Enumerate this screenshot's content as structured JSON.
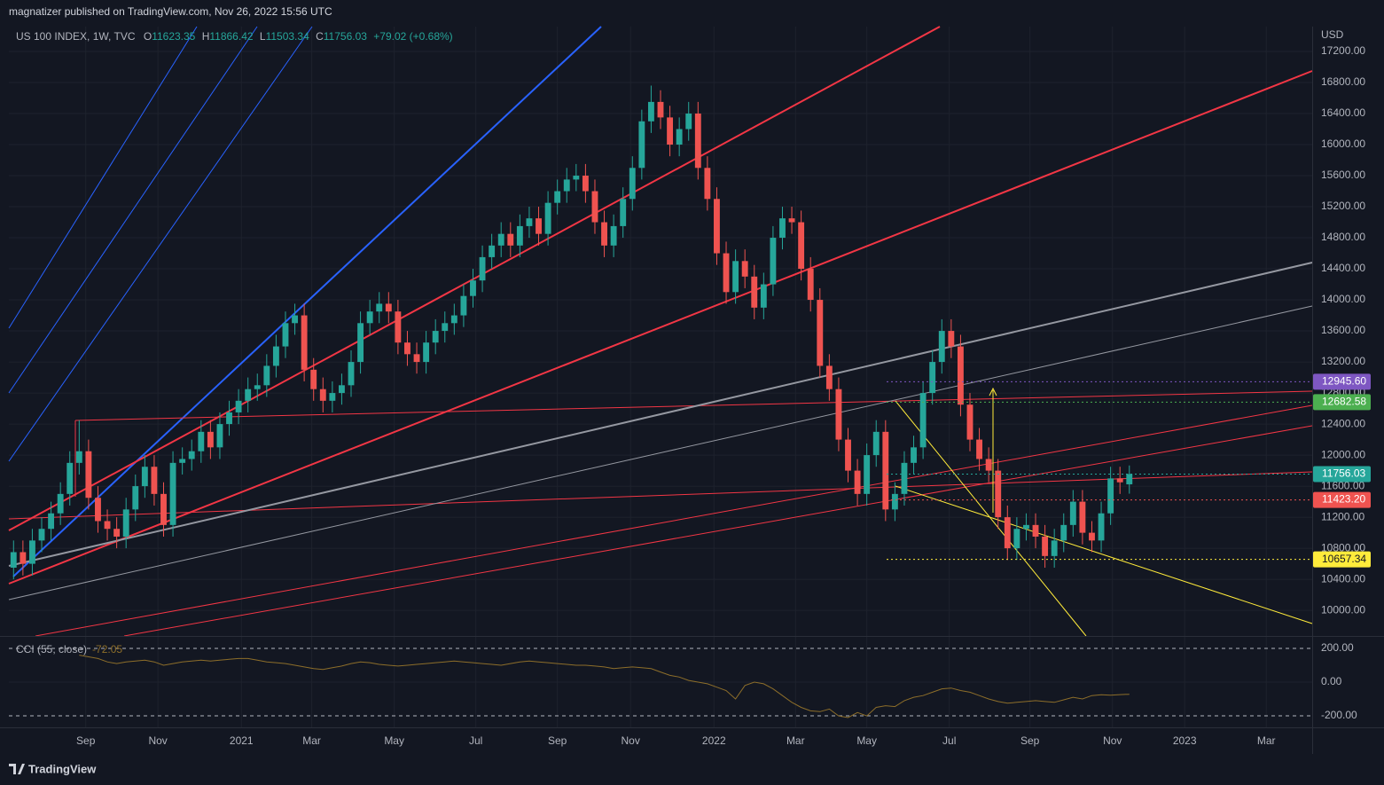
{
  "header": {
    "publisher": "magnatizer published on TradingView.com, Nov 26, 2022 15:56 UTC",
    "footer": "TradingView"
  },
  "chart_data": {
    "type": "candlestick",
    "title": "US 100 INDEX, 1W, TVC",
    "currency": "USD",
    "change": "+79.02 (+0.68%)",
    "ohlc_letters": [
      "O",
      "H",
      "L",
      "C"
    ],
    "up_color": "#26a69a",
    "down_color": "#ef5350",
    "grid": true,
    "open": [
      10550,
      10750,
      10600,
      10900,
      11050,
      11250,
      11500,
      11900,
      12050,
      11450,
      11150,
      11050,
      10950,
      11300,
      11600,
      11850,
      11500,
      11100,
      11900,
      11950,
      12050,
      12300,
      12100,
      12400,
      12550,
      12700,
      12850,
      12900,
      13150,
      13400,
      13700,
      13800,
      13100,
      12850,
      12700,
      12800,
      12900,
      13200,
      13700,
      13850,
      13950,
      13850,
      13450,
      13300,
      13200,
      13450,
      13600,
      13700,
      13800,
      14050,
      14250,
      14550,
      14700,
      14850,
      14700,
      14950,
      15050,
      14850,
      15250,
      15400,
      15550,
      15600,
      15400,
      15000,
      14700,
      14950,
      15300,
      15700,
      16300,
      16550,
      16350,
      16000,
      16200,
      16400,
      15700,
      15300,
      14600,
      14100,
      14500,
      14300,
      13900,
      14200,
      14800,
      15050,
      15000,
      14400,
      14000,
      13150,
      12850,
      12200,
      11800,
      11500,
      12000,
      12300,
      11300,
      11500,
      11900,
      12100,
      12800,
      13200,
      13600,
      13400,
      12650,
      12200,
      11950,
      11800,
      11200,
      10800,
      11050,
      11100,
      10950,
      10700,
      10900,
      11100,
      11400,
      11000,
      10900,
      11250,
      11700,
      11623.35
    ],
    "high": [
      10900,
      10900,
      11050,
      11200,
      11400,
      11650,
      12050,
      12450,
      12200,
      11600,
      11300,
      11200,
      11450,
      11750,
      12000,
      12000,
      11650,
      12050,
      12100,
      12200,
      12450,
      12450,
      12550,
      12700,
      12850,
      13000,
      13050,
      13300,
      13550,
      13850,
      13950,
      13950,
      13250,
      13000,
      12950,
      13050,
      13350,
      13850,
      14000,
      14100,
      14100,
      14000,
      13600,
      13450,
      13600,
      13750,
      13850,
      13950,
      14200,
      14400,
      14700,
      14850,
      15000,
      15000,
      15100,
      15200,
      15200,
      15400,
      15550,
      15700,
      15750,
      15750,
      15550,
      15150,
      15100,
      15450,
      15850,
      16450,
      16760,
      16700,
      16500,
      16350,
      16550,
      16550,
      15850,
      15450,
      14750,
      14650,
      14650,
      14450,
      14350,
      14950,
      15200,
      15200,
      15150,
      14550,
      14150,
      13300,
      13000,
      12350,
      11950,
      12150,
      12450,
      12450,
      11650,
      12050,
      12250,
      12950,
      13350,
      13750,
      13750,
      13550,
      12800,
      12350,
      12100,
      11950,
      11350,
      11200,
      11250,
      11250,
      11100,
      11050,
      11250,
      11550,
      11550,
      11150,
      11400,
      11850,
      11850,
      11866.42
    ],
    "low": [
      10400,
      10450,
      10450,
      10750,
      10900,
      11100,
      11350,
      11750,
      11300,
      11000,
      10900,
      10800,
      10800,
      11150,
      11450,
      11350,
      10950,
      10950,
      11750,
      11800,
      11900,
      11950,
      11950,
      12250,
      12400,
      12550,
      12700,
      12750,
      13000,
      13250,
      13550,
      12950,
      12700,
      12550,
      12550,
      12650,
      12750,
      13050,
      13550,
      13700,
      13700,
      13300,
      13150,
      13050,
      13050,
      13300,
      13450,
      13550,
      13650,
      13900,
      14100,
      14400,
      14550,
      14550,
      14550,
      14800,
      14700,
      14700,
      15100,
      15250,
      15400,
      15250,
      14850,
      14550,
      14550,
      14800,
      15150,
      15550,
      16150,
      16200,
      15850,
      15850,
      16050,
      15550,
      15150,
      14450,
      13950,
      13950,
      14150,
      13750,
      13750,
      14050,
      14650,
      14850,
      14250,
      13850,
      13000,
      12700,
      12050,
      11650,
      11350,
      11350,
      11850,
      11150,
      11150,
      11350,
      11750,
      11950,
      12650,
      13050,
      13250,
      12500,
      12050,
      11800,
      11650,
      11050,
      10650,
      10650,
      10900,
      10800,
      10550,
      10550,
      10750,
      10950,
      10850,
      10750,
      10750,
      11100,
      11500,
      11503.34
    ],
    "close": [
      10750,
      10600,
      10900,
      11050,
      11250,
      11500,
      11900,
      12050,
      11450,
      11150,
      11050,
      10950,
      11300,
      11600,
      11850,
      11500,
      11100,
      11900,
      11950,
      12050,
      12300,
      12100,
      12400,
      12550,
      12700,
      12850,
      12900,
      13150,
      13400,
      13700,
      13800,
      13100,
      12850,
      12700,
      12800,
      12900,
      13200,
      13700,
      13850,
      13950,
      13850,
      13450,
      13300,
      13200,
      13450,
      13600,
      13700,
      13800,
      14050,
      14250,
      14550,
      14700,
      14850,
      14700,
      14950,
      15050,
      14850,
      15250,
      15400,
      15550,
      15600,
      15400,
      15000,
      14700,
      14950,
      15300,
      15700,
      16300,
      16550,
      16350,
      16000,
      16200,
      16400,
      15700,
      15300,
      14600,
      14100,
      14500,
      14300,
      13900,
      14200,
      14800,
      15050,
      15000,
      14400,
      14000,
      13150,
      12850,
      12200,
      11800,
      11500,
      12000,
      12300,
      11300,
      11500,
      11900,
      12100,
      12800,
      13200,
      13600,
      13400,
      12650,
      12200,
      11950,
      11800,
      11200,
      10800,
      11050,
      11100,
      10950,
      10700,
      10900,
      11100,
      11400,
      11000,
      10900,
      11250,
      11700,
      11650,
      11756.03
    ],
    "xlim": [
      -0.5,
      138.5
    ],
    "xticks": [
      {
        "value": 7.7,
        "label": "Sep"
      },
      {
        "value": 15.4,
        "label": "Nov"
      },
      {
        "value": 24.3,
        "label": "2021"
      },
      {
        "value": 31.8,
        "label": "Mar"
      },
      {
        "value": 40.6,
        "label": "May"
      },
      {
        "value": 49.3,
        "label": "Jul"
      },
      {
        "value": 58,
        "label": "Sep"
      },
      {
        "value": 65.8,
        "label": "Nov"
      },
      {
        "value": 74.7,
        "label": "2022"
      },
      {
        "value": 83.4,
        "label": "Mar"
      },
      {
        "value": 91,
        "label": "May"
      },
      {
        "value": 99.8,
        "label": "Jul"
      },
      {
        "value": 108.4,
        "label": "Sep"
      },
      {
        "value": 117.2,
        "label": "Nov"
      },
      {
        "value": 124.9,
        "label": "2023"
      },
      {
        "value": 133.6,
        "label": "Mar"
      }
    ],
    "ylim": [
      9670,
      17520
    ],
    "yticks": [
      {
        "value": 10000,
        "label": "10000.00"
      },
      {
        "value": 10400,
        "label": "10400.00"
      },
      {
        "value": 10800,
        "label": "10800.00"
      },
      {
        "value": 11200,
        "label": "11200.00"
      },
      {
        "value": 11600,
        "label": "11600.00"
      },
      {
        "value": 12000,
        "label": "12000.00"
      },
      {
        "value": 12400,
        "label": "12400.00"
      },
      {
        "value": 12800,
        "label": "12800.00"
      },
      {
        "value": 13200,
        "label": "13200.00"
      },
      {
        "value": 13600,
        "label": "13600.00"
      },
      {
        "value": 14000,
        "label": "14000.00"
      },
      {
        "value": 14400,
        "label": "14400.00"
      },
      {
        "value": 14800,
        "label": "14800.00"
      },
      {
        "value": 15200,
        "label": "15200.00"
      },
      {
        "value": 15600,
        "label": "15600.00"
      },
      {
        "value": 16000,
        "label": "16000.00"
      },
      {
        "value": 16400,
        "label": "16400.00"
      },
      {
        "value": 16800,
        "label": "16800.00"
      },
      {
        "value": 17200,
        "label": "17200.00"
      }
    ],
    "price_labels": [
      {
        "value": 12945.6,
        "label": "12945.60",
        "color": "#7e57c2"
      },
      {
        "value": 12682.58,
        "label": "12682.58",
        "color": "#4caf50"
      },
      {
        "value": 11756.03,
        "label": "11756.03",
        "color": "#26a69a"
      },
      {
        "value": 11423.2,
        "label": "11423.20",
        "color": "#ef5350"
      },
      {
        "value": 10657.34,
        "label": "10657.34",
        "color": "#ffeb3b"
      }
    ],
    "indicator": {
      "name": "CCI (55, close)",
      "color": "#8d6e2a",
      "values": [
        null,
        null,
        null,
        null,
        null,
        null,
        null,
        160,
        150,
        140,
        120,
        110,
        120,
        125,
        130,
        120,
        100,
        110,
        120,
        125,
        130,
        125,
        130,
        135,
        140,
        140,
        130,
        120,
        115,
        110,
        100,
        90,
        80,
        75,
        85,
        95,
        110,
        120,
        115,
        105,
        100,
        95,
        100,
        105,
        110,
        115,
        120,
        125,
        120,
        115,
        110,
        105,
        100,
        110,
        120,
        125,
        120,
        115,
        110,
        105,
        100,
        100,
        95,
        90,
        80,
        85,
        90,
        85,
        80,
        60,
        40,
        30,
        10,
        0,
        -10,
        -30,
        -50,
        -100,
        -20,
        0,
        -10,
        -40,
        -80,
        -120,
        -150,
        -170,
        -175,
        -160,
        -200,
        -210,
        -180,
        -200,
        -150,
        -140,
        -145,
        -110,
        -90,
        -80,
        -60,
        -40,
        -35,
        -50,
        -60,
        -80,
        -100,
        -115,
        -125,
        -120,
        -115,
        -110,
        -115,
        -120,
        -105,
        -90,
        -100,
        -80,
        -75,
        -78,
        -74,
        -72.05
      ],
      "ylim": [
        -268,
        268
      ],
      "yticks": [
        {
          "value": 200,
          "label": "200.00"
        },
        {
          "value": 0,
          "label": "0.00"
        },
        {
          "value": -200,
          "label": "-200.00"
        }
      ]
    }
  }
}
